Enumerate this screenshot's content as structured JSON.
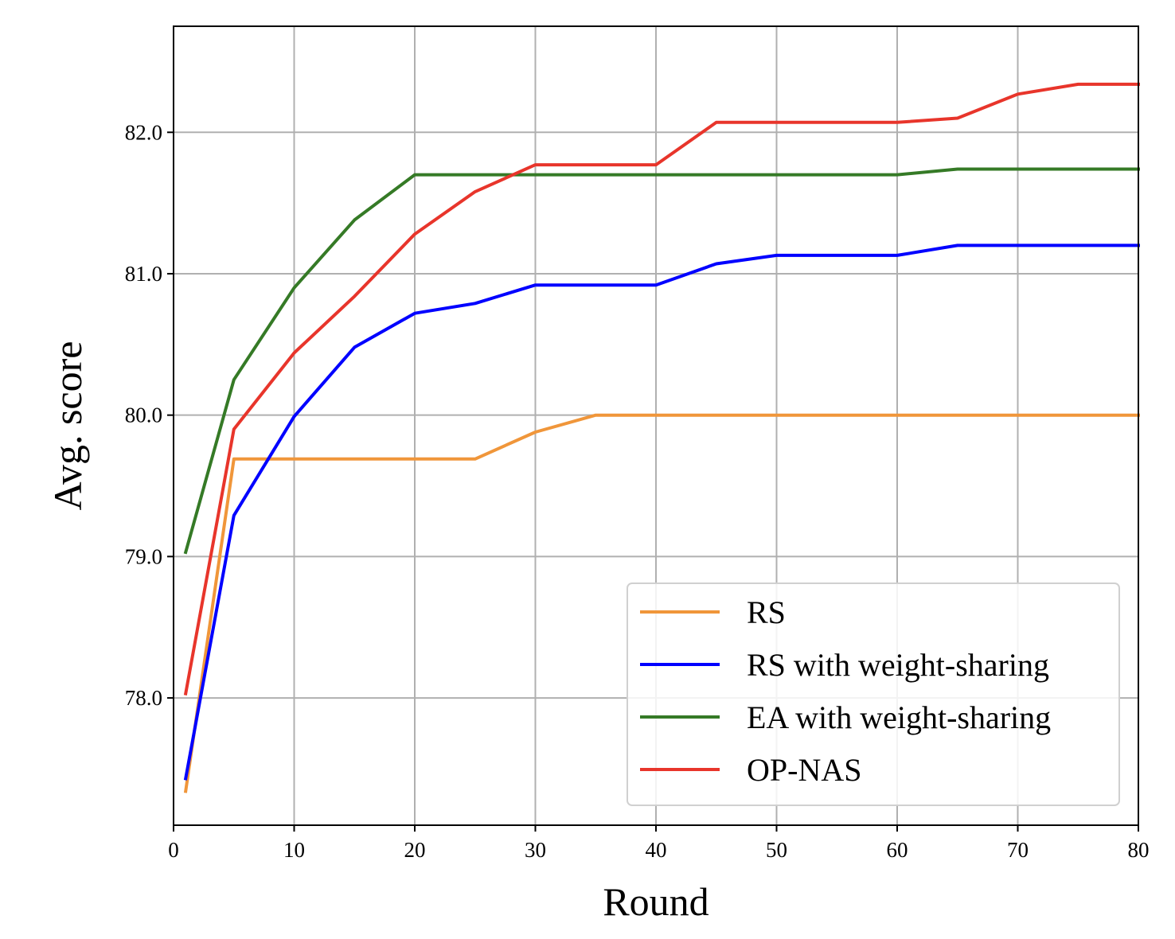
{
  "chart_data": {
    "type": "line",
    "xlabel": "Round",
    "ylabel": "Avg. score",
    "xlim": [
      0,
      80
    ],
    "ylim": [
      77.1,
      82.75
    ],
    "xticks": [
      0,
      10,
      20,
      30,
      40,
      50,
      60,
      70,
      80
    ],
    "yticks": [
      78.0,
      79.0,
      80.0,
      81.0,
      82.0
    ],
    "xtick_labels": [
      "0",
      "10",
      "20",
      "30",
      "40",
      "50",
      "60",
      "70",
      "80"
    ],
    "ytick_labels": [
      "78.0",
      "79.0",
      "80.0",
      "81.0",
      "82.0"
    ],
    "grid": true,
    "legend_position": "lower-right",
    "x": [
      1,
      5,
      10,
      15,
      20,
      25,
      30,
      35,
      40,
      45,
      50,
      55,
      60,
      65,
      70,
      75,
      80
    ],
    "series": [
      {
        "name": "RS",
        "color": "#f0963a",
        "values": [
          77.34,
          79.69,
          79.69,
          79.69,
          79.69,
          79.69,
          79.88,
          80.0,
          80.0,
          80.0,
          80.0,
          80.0,
          80.0,
          80.0,
          80.0,
          80.0,
          80.0
        ]
      },
      {
        "name": "RS with weight-sharing",
        "color": "#0000ff",
        "values": [
          77.43,
          79.29,
          79.99,
          80.48,
          80.72,
          80.79,
          80.92,
          80.92,
          80.92,
          81.07,
          81.13,
          81.13,
          81.13,
          81.2,
          81.2,
          81.2,
          81.2
        ]
      },
      {
        "name": "EA with weight-sharing",
        "color": "#357a26",
        "values": [
          79.03,
          80.25,
          80.9,
          81.38,
          81.7,
          81.7,
          81.7,
          81.7,
          81.7,
          81.7,
          81.7,
          81.7,
          81.7,
          81.74,
          81.74,
          81.74,
          81.74
        ]
      },
      {
        "name": "OP-NAS",
        "color": "#e8352b",
        "values": [
          78.03,
          79.9,
          80.44,
          80.84,
          81.28,
          81.58,
          81.77,
          81.77,
          81.77,
          82.07,
          82.07,
          82.07,
          82.07,
          82.1,
          82.27,
          82.34,
          82.34
        ]
      }
    ]
  }
}
